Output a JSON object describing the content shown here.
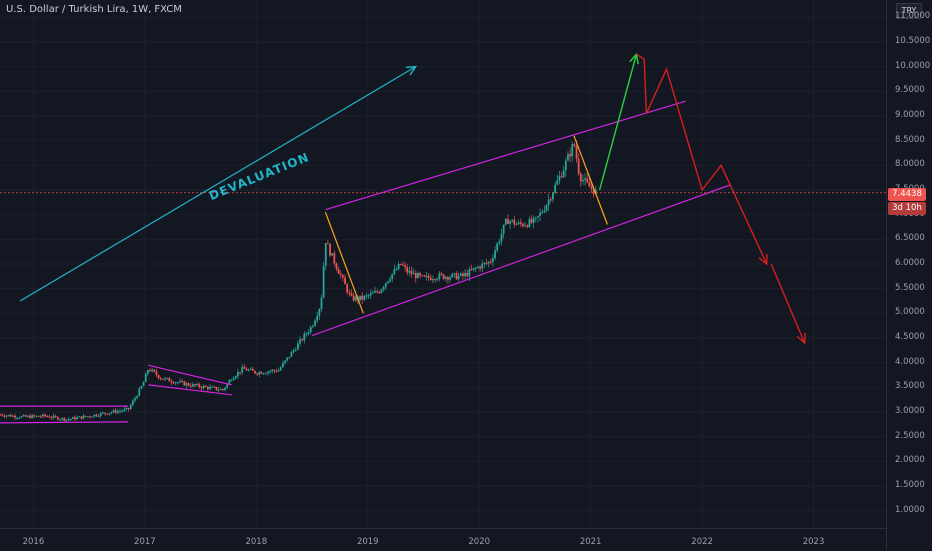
{
  "header": {
    "title": "U.S. Dollar / Turkish Lira, 1W, FXCM"
  },
  "axis": {
    "currency": "TRY"
  },
  "price": {
    "last": "7.4438",
    "countdown": "3d 10h"
  },
  "annotations": {
    "trend_label": "DEVALUATION"
  },
  "colors": {
    "background": "#131722",
    "up": "#26a69a",
    "down": "#ef5350",
    "channel": "#d024e0",
    "orange": "#ffa41c",
    "green": "#26d43c",
    "red": "#d81e1e",
    "cyan": "#1fb6c8"
  },
  "chart_data": {
    "type": "candlestick",
    "symbol": "USDTRY",
    "title": "U.S. Dollar / Turkish Lira, 1W, FXCM",
    "ylim": [
      0.65,
      11.35
    ],
    "y_ticks": [
      "1.0000",
      "1.5000",
      "2.0000",
      "2.5000",
      "3.0000",
      "3.5000",
      "4.0000",
      "4.5000",
      "5.0000",
      "5.5000",
      "6.0000",
      "6.5000",
      "7.0000",
      "7.5000",
      "8.0000",
      "8.5000",
      "9.0000",
      "9.5000",
      "10.0000",
      "10.5000",
      "11.0000"
    ],
    "x_ticks": [
      "2016",
      "2017",
      "2018",
      "2019",
      "2020",
      "2021",
      "2022",
      "2023"
    ],
    "x_range": [
      2015.7,
      2023.65
    ],
    "price_path": [
      [
        2015.7,
        2.95
      ],
      [
        2015.9,
        2.9
      ],
      [
        2016.1,
        2.92
      ],
      [
        2016.3,
        2.85
      ],
      [
        2016.5,
        2.92
      ],
      [
        2016.7,
        3.0
      ],
      [
        2016.85,
        3.05
      ],
      [
        2016.98,
        3.55
      ],
      [
        2017.03,
        3.88
      ],
      [
        2017.15,
        3.68
      ],
      [
        2017.4,
        3.55
      ],
      [
        2017.55,
        3.5
      ],
      [
        2017.7,
        3.45
      ],
      [
        2017.78,
        3.7
      ],
      [
        2017.88,
        3.88
      ],
      [
        2018.0,
        3.8
      ],
      [
        2018.2,
        3.85
      ],
      [
        2018.35,
        4.3
      ],
      [
        2018.5,
        4.75
      ],
      [
        2018.58,
        5.2
      ],
      [
        2018.62,
        6.5
      ],
      [
        2018.65,
        6.3
      ],
      [
        2018.75,
        5.8
      ],
      [
        2018.85,
        5.3
      ],
      [
        2018.95,
        5.3
      ],
      [
        2019.1,
        5.45
      ],
      [
        2019.2,
        5.75
      ],
      [
        2019.3,
        6.0
      ],
      [
        2019.35,
        5.85
      ],
      [
        2019.5,
        5.7
      ],
      [
        2019.6,
        5.75
      ],
      [
        2019.75,
        5.75
      ],
      [
        2019.85,
        5.75
      ],
      [
        2020.0,
        5.95
      ],
      [
        2020.1,
        6.05
      ],
      [
        2020.25,
        6.9
      ],
      [
        2020.35,
        6.8
      ],
      [
        2020.5,
        6.85
      ],
      [
        2020.6,
        7.2
      ],
      [
        2020.75,
        7.9
      ],
      [
        2020.85,
        8.45
      ],
      [
        2020.9,
        7.8
      ],
      [
        2020.97,
        7.6
      ],
      [
        2021.05,
        7.45
      ]
    ],
    "drawings": {
      "trend_arrow_devaluation": [
        [
          2015.88,
          5.25
        ],
        [
          2019.43,
          10.0
        ]
      ],
      "channel_upper": [
        [
          2018.62,
          7.1
        ],
        [
          2021.85,
          9.3
        ]
      ],
      "channel_lower": [
        [
          2018.5,
          4.55
        ],
        [
          2022.25,
          7.6
        ]
      ],
      "base_range_top": [
        [
          2015.7,
          3.12
        ],
        [
          2016.85,
          3.12
        ]
      ],
      "base_range_bottom": [
        [
          2015.7,
          2.78
        ],
        [
          2016.85,
          2.8
        ]
      ],
      "triangle_upper": [
        [
          2017.03,
          3.95
        ],
        [
          2017.78,
          3.55
        ]
      ],
      "triangle_lower": [
        [
          2017.03,
          3.55
        ],
        [
          2017.78,
          3.35
        ]
      ],
      "orange_down_1": [
        [
          2018.62,
          7.05
        ],
        [
          2018.96,
          5.0
        ]
      ],
      "orange_down_2": [
        [
          2020.85,
          8.6
        ],
        [
          2021.15,
          6.8
        ]
      ],
      "green_up_arrow": [
        [
          2021.08,
          7.5
        ],
        [
          2021.41,
          10.25
        ]
      ],
      "red_projection": [
        [
          2021.41,
          10.25
        ],
        [
          2021.48,
          10.15
        ],
        [
          2021.5,
          9.05
        ],
        [
          2021.68,
          9.95
        ],
        [
          2022.0,
          7.5
        ],
        [
          2022.17,
          8.0
        ],
        [
          2022.58,
          6.0
        ]
      ],
      "red_final_arrow": [
        [
          2022.62,
          6.0
        ],
        [
          2022.92,
          4.4
        ]
      ]
    }
  }
}
